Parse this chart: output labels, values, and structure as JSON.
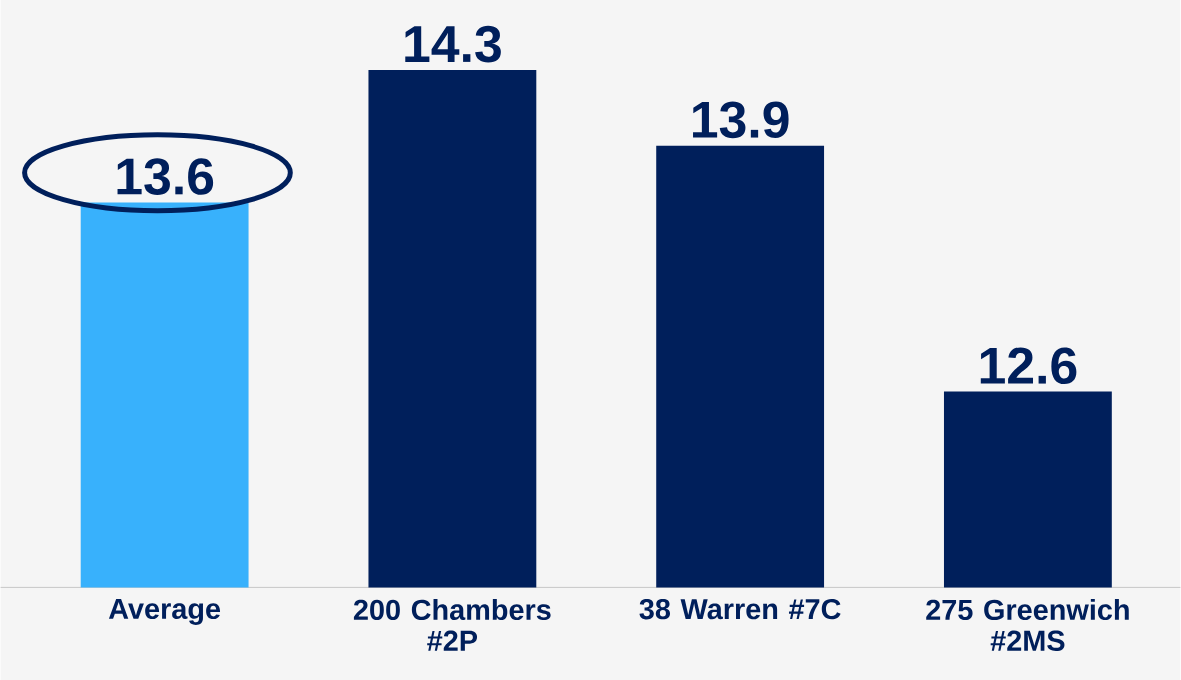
{
  "chart_data": {
    "type": "bar",
    "categories": [
      "Average",
      "200 Chambers #2P",
      "38 Warren #7C",
      "275 Greenwich #2MS"
    ],
    "values": [
      13.6,
      14.3,
      13.9,
      12.6
    ],
    "colors": [
      "#38b1fc",
      "#001f5b",
      "#001f5b",
      "#001f5b"
    ],
    "ylim": [
      11.565,
      14.67
    ],
    "data_labels": true
  }
}
